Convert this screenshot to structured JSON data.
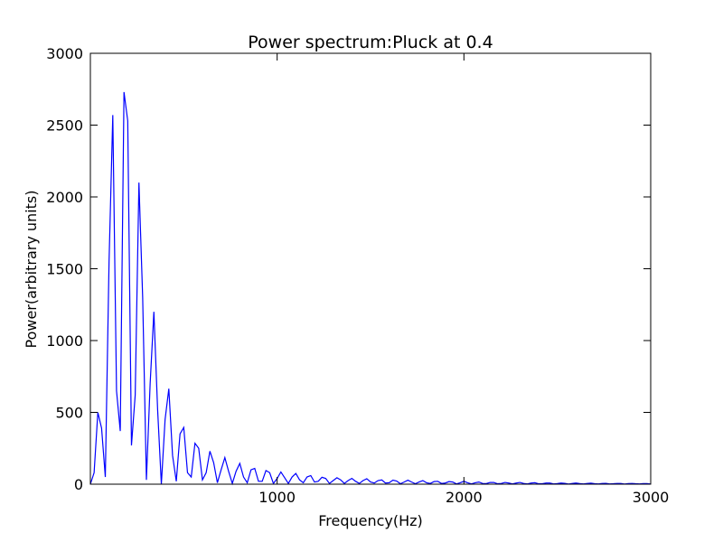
{
  "chart_data": {
    "type": "line",
    "title": "Power spectrum:Pluck at 0.4",
    "xlabel": "Frequency(Hz)",
    "ylabel": "Power(arbitrary units)",
    "x": [
      0,
      20,
      40,
      60,
      80,
      100,
      120,
      140,
      160,
      180,
      200,
      220,
      240,
      260,
      280,
      300,
      320,
      340,
      360,
      380,
      400,
      420,
      440,
      460,
      480,
      500,
      520,
      540,
      560,
      580,
      600,
      620,
      640,
      660,
      680,
      700,
      720,
      740,
      760,
      780,
      800,
      820,
      840,
      860,
      880,
      900,
      920,
      940,
      960,
      980,
      1000,
      1020,
      1040,
      1060,
      1080,
      1100,
      1120,
      1140,
      1160,
      1180,
      1200,
      1220,
      1240,
      1260,
      1280,
      1300,
      1320,
      1340,
      1360,
      1380,
      1400,
      1420,
      1440,
      1460,
      1480,
      1500,
      1520,
      1540,
      1560,
      1580,
      1600,
      1620,
      1640,
      1660,
      1680,
      1700,
      1720,
      1740,
      1760,
      1780,
      1800,
      1820,
      1840,
      1860,
      1880,
      1900,
      1920,
      1940,
      1960,
      1980,
      2000,
      2020,
      2040,
      2060,
      2080,
      2100,
      2120,
      2140,
      2160,
      2180,
      2200,
      2220,
      2240,
      2260,
      2280,
      2300,
      2320,
      2340,
      2360,
      2380,
      2400,
      2420,
      2440,
      2460,
      2480,
      2500,
      2520,
      2540,
      2560,
      2580,
      2600,
      2620,
      2640,
      2660,
      2680,
      2700,
      2720,
      2740,
      2760,
      2780,
      2800,
      2820,
      2840,
      2860,
      2880,
      2900,
      2920,
      2940,
      2960,
      2980,
      3000
    ],
    "series": [
      {
        "name": "Power",
        "color": "#0000ff",
        "values": [
          0,
          80,
          500,
          390,
          50,
          1550,
          2570,
          650,
          370,
          2730,
          2530,
          270,
          620,
          2100,
          1300,
          30,
          700,
          1200,
          520,
          0,
          450,
          665,
          200,
          20,
          350,
          395,
          80,
          50,
          285,
          250,
          30,
          80,
          230,
          150,
          10,
          100,
          185,
          90,
          5,
          90,
          145,
          50,
          10,
          100,
          110,
          20,
          20,
          95,
          80,
          5,
          40,
          85,
          45,
          5,
          50,
          75,
          30,
          10,
          50,
          60,
          15,
          20,
          48,
          40,
          5,
          25,
          45,
          30,
          5,
          25,
          40,
          20,
          5,
          25,
          38,
          15,
          8,
          25,
          30,
          8,
          10,
          28,
          22,
          3,
          15,
          28,
          15,
          3,
          15,
          25,
          10,
          5,
          18,
          20,
          5,
          8,
          18,
          15,
          2,
          10,
          20,
          10,
          2,
          10,
          15,
          5,
          4,
          12,
          12,
          3,
          5,
          12,
          8,
          2,
          8,
          12,
          5,
          2,
          8,
          10,
          3,
          3,
          8,
          8,
          2,
          4,
          8,
          6,
          1,
          5,
          8,
          4,
          2,
          5,
          7,
          3,
          2,
          5,
          6,
          2,
          3,
          5,
          5,
          1,
          4,
          5,
          3,
          2,
          4,
          4,
          1
        ]
      }
    ],
    "xlim": [
      0,
      3000
    ],
    "xticks": [
      1000,
      2000,
      3000
    ],
    "ylim": [
      0,
      3000
    ],
    "yticks": [
      0,
      500,
      1000,
      1500,
      2000,
      2500,
      3000
    ]
  }
}
